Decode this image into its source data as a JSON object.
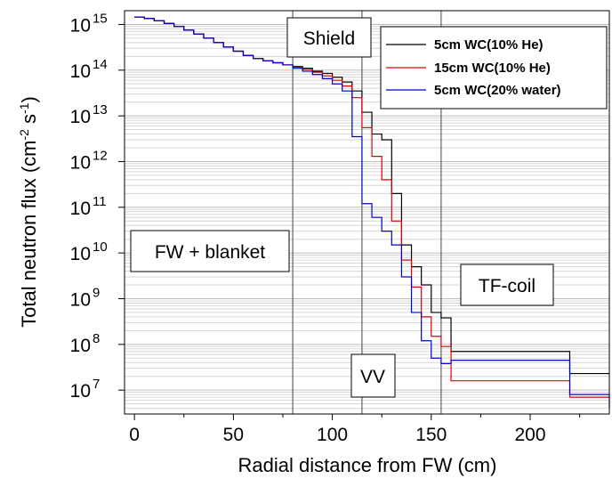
{
  "chart_data": {
    "type": "line",
    "xlabel": "Radial distance from FW (cm)",
    "ylabel": "Total neutron flux (cm-2 s-1)",
    "ylabel_parts": [
      "Total neutron flux (cm",
      "-2",
      " s",
      "-1",
      ")"
    ],
    "xlim": [
      -5,
      240
    ],
    "ylim": [
      3000000.0,
      2000000000000000.0
    ],
    "yscale": "log",
    "x_ticks": [
      0,
      50,
      100,
      150,
      200
    ],
    "x_tick_labels": [
      "0",
      "50",
      "100",
      "150",
      "200"
    ],
    "y_tick_exponents": [
      7,
      8,
      9,
      10,
      11,
      12,
      13,
      14,
      15
    ],
    "y_tick_base": "10",
    "y_tick_labels": [
      "7",
      "8",
      "9",
      "10",
      "11",
      "12",
      "13",
      "14",
      "15"
    ],
    "grid": true,
    "boundaries": [
      80,
      115,
      155
    ],
    "regions": [
      {
        "label": "FW + blanket"
      },
      {
        "label": "Shield"
      },
      {
        "label": "VV"
      },
      {
        "label": "TF-coil"
      }
    ],
    "legend_position": "top-right",
    "series": [
      {
        "name": "5cm WC(10% He)",
        "color": "#000000",
        "x": [
          0,
          5,
          10,
          15,
          20,
          25,
          30,
          35,
          40,
          45,
          50,
          55,
          60,
          65,
          70,
          75,
          80,
          85,
          90,
          95,
          100,
          105,
          110,
          115,
          120,
          125,
          130,
          135,
          140,
          145,
          150,
          155,
          160,
          220,
          240
        ],
        "y": [
          1450000000000000.0,
          1350000000000000.0,
          1200000000000000.0,
          1050000000000000.0,
          900000000000000.0,
          750000000000000.0,
          620000000000000.0,
          500000000000000.0,
          400000000000000.0,
          320000000000000.0,
          260000000000000.0,
          210000000000000.0,
          180000000000000.0,
          160000000000000.0,
          145000000000000.0,
          130000000000000.0,
          120000000000000.0,
          110000000000000.0,
          95000000000000.0,
          85000000000000.0,
          70000000000000.0,
          55000000000000.0,
          35000000000000.0,
          12000000000000.0,
          4000000000000.0,
          3000000000000.0,
          200000000000.0,
          15000000000.0,
          5000000000.0,
          2000000000.0,
          500000000.0,
          380000000.0,
          70000000.0,
          23000000.0,
          23000000.0
        ]
      },
      {
        "name": "15cm WC(10% He)",
        "color": "#e00000",
        "x": [
          0,
          5,
          10,
          15,
          20,
          25,
          30,
          35,
          40,
          45,
          50,
          55,
          60,
          65,
          70,
          75,
          80,
          85,
          90,
          95,
          100,
          105,
          110,
          115,
          120,
          125,
          130,
          135,
          140,
          145,
          150,
          155,
          160,
          220,
          240
        ],
        "y": [
          1450000000000000.0,
          1350000000000000.0,
          1200000000000000.0,
          1050000000000000.0,
          900000000000000.0,
          750000000000000.0,
          620000000000000.0,
          500000000000000.0,
          400000000000000.0,
          320000000000000.0,
          260000000000000.0,
          210000000000000.0,
          180000000000000.0,
          160000000000000.0,
          145000000000000.0,
          130000000000000.0,
          115000000000000.0,
          105000000000000.0,
          90000000000000.0,
          75000000000000.0,
          60000000000000.0,
          45000000000000.0,
          25000000000000.0,
          5500000000000.0,
          1300000000000.0,
          400000000000.0,
          50000000000.0,
          7000000000.0,
          1800000000.0,
          400000000.0,
          150000000.0,
          90000000.0,
          16000000.0,
          7000000.0,
          7000000.0
        ]
      },
      {
        "name": "5cm WC(20% water)",
        "color": "#0000cc",
        "x": [
          0,
          5,
          10,
          15,
          20,
          25,
          30,
          35,
          40,
          45,
          50,
          55,
          60,
          65,
          70,
          75,
          80,
          85,
          90,
          95,
          100,
          105,
          110,
          115,
          120,
          125,
          130,
          135,
          140,
          145,
          150,
          155,
          160,
          220,
          240
        ],
        "y": [
          1450000000000000.0,
          1350000000000000.0,
          1200000000000000.0,
          1050000000000000.0,
          900000000000000.0,
          750000000000000.0,
          620000000000000.0,
          500000000000000.0,
          400000000000000.0,
          320000000000000.0,
          260000000000000.0,
          210000000000000.0,
          180000000000000.0,
          160000000000000.0,
          145000000000000.0,
          130000000000000.0,
          110000000000000.0,
          95000000000000.0,
          80000000000000.0,
          65000000000000.0,
          50000000000000.0,
          35000000000000.0,
          3500000000000.0,
          120000000000.0,
          60000000000.0,
          30000000000.0,
          15000000000.0,
          3000000000.0,
          500000000.0,
          120000000.0,
          50000000.0,
          38000000.0,
          45000000.0,
          8000000.0,
          4000000.0
        ]
      }
    ]
  }
}
